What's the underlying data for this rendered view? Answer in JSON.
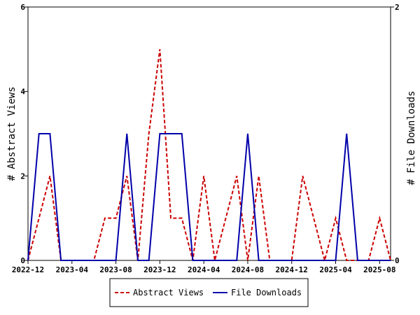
{
  "chart_data": {
    "type": "line",
    "x": [
      "2022-12",
      "2023-01",
      "2023-02",
      "2023-03",
      "2023-04",
      "2023-05",
      "2023-06",
      "2023-07",
      "2023-08",
      "2023-09",
      "2023-10",
      "2023-11",
      "2023-12",
      "2024-01",
      "2024-02",
      "2024-03",
      "2024-04",
      "2024-05",
      "2024-06",
      "2024-07",
      "2024-08",
      "2024-09",
      "2024-10",
      "2024-11",
      "2024-12",
      "2025-01",
      "2025-02",
      "2025-03",
      "2025-04",
      "2025-05",
      "2025-06",
      "2025-07",
      "2025-08",
      "2025-09"
    ],
    "x_tick_labels": [
      "2022-12",
      "2023-04",
      "2023-08",
      "2023-12",
      "2024-04",
      "2024-08",
      "2024-12",
      "2025-04",
      "2025-08"
    ],
    "x_tick_index": [
      0,
      4,
      8,
      12,
      16,
      20,
      24,
      28,
      32
    ],
    "series": [
      {
        "name": "Abstract Views",
        "axis": "left",
        "color": "#cc0000",
        "dash": true,
        "values": [
          0,
          1,
          2,
          0,
          0,
          0,
          0,
          1,
          1,
          2,
          0,
          3,
          5,
          1,
          1,
          0,
          2,
          0,
          1,
          2,
          0,
          2,
          0,
          0,
          0,
          2,
          1,
          0,
          1,
          0,
          0,
          0,
          1,
          0
        ]
      },
      {
        "name": "File Downloads",
        "axis": "right",
        "color": "#0000aa",
        "dash": false,
        "values": [
          0,
          1,
          1,
          0,
          0,
          0,
          0,
          0,
          0,
          1,
          0,
          0,
          1,
          1,
          1,
          0,
          0,
          0,
          0,
          0,
          1,
          0,
          0,
          0,
          0,
          0,
          0,
          0,
          0,
          1,
          0,
          0,
          0,
          0
        ]
      }
    ],
    "ylabel": "# Abstract Views",
    "ylabel_right": "# File Downloads",
    "ylim": [
      0,
      6
    ],
    "ylim_right": [
      0,
      2
    ],
    "y_ticks": [
      "0",
      "2",
      "4",
      "6"
    ],
    "y_ticks_right": [
      "0",
      "2"
    ],
    "legend_position": "bottom-center",
    "grid": false
  }
}
